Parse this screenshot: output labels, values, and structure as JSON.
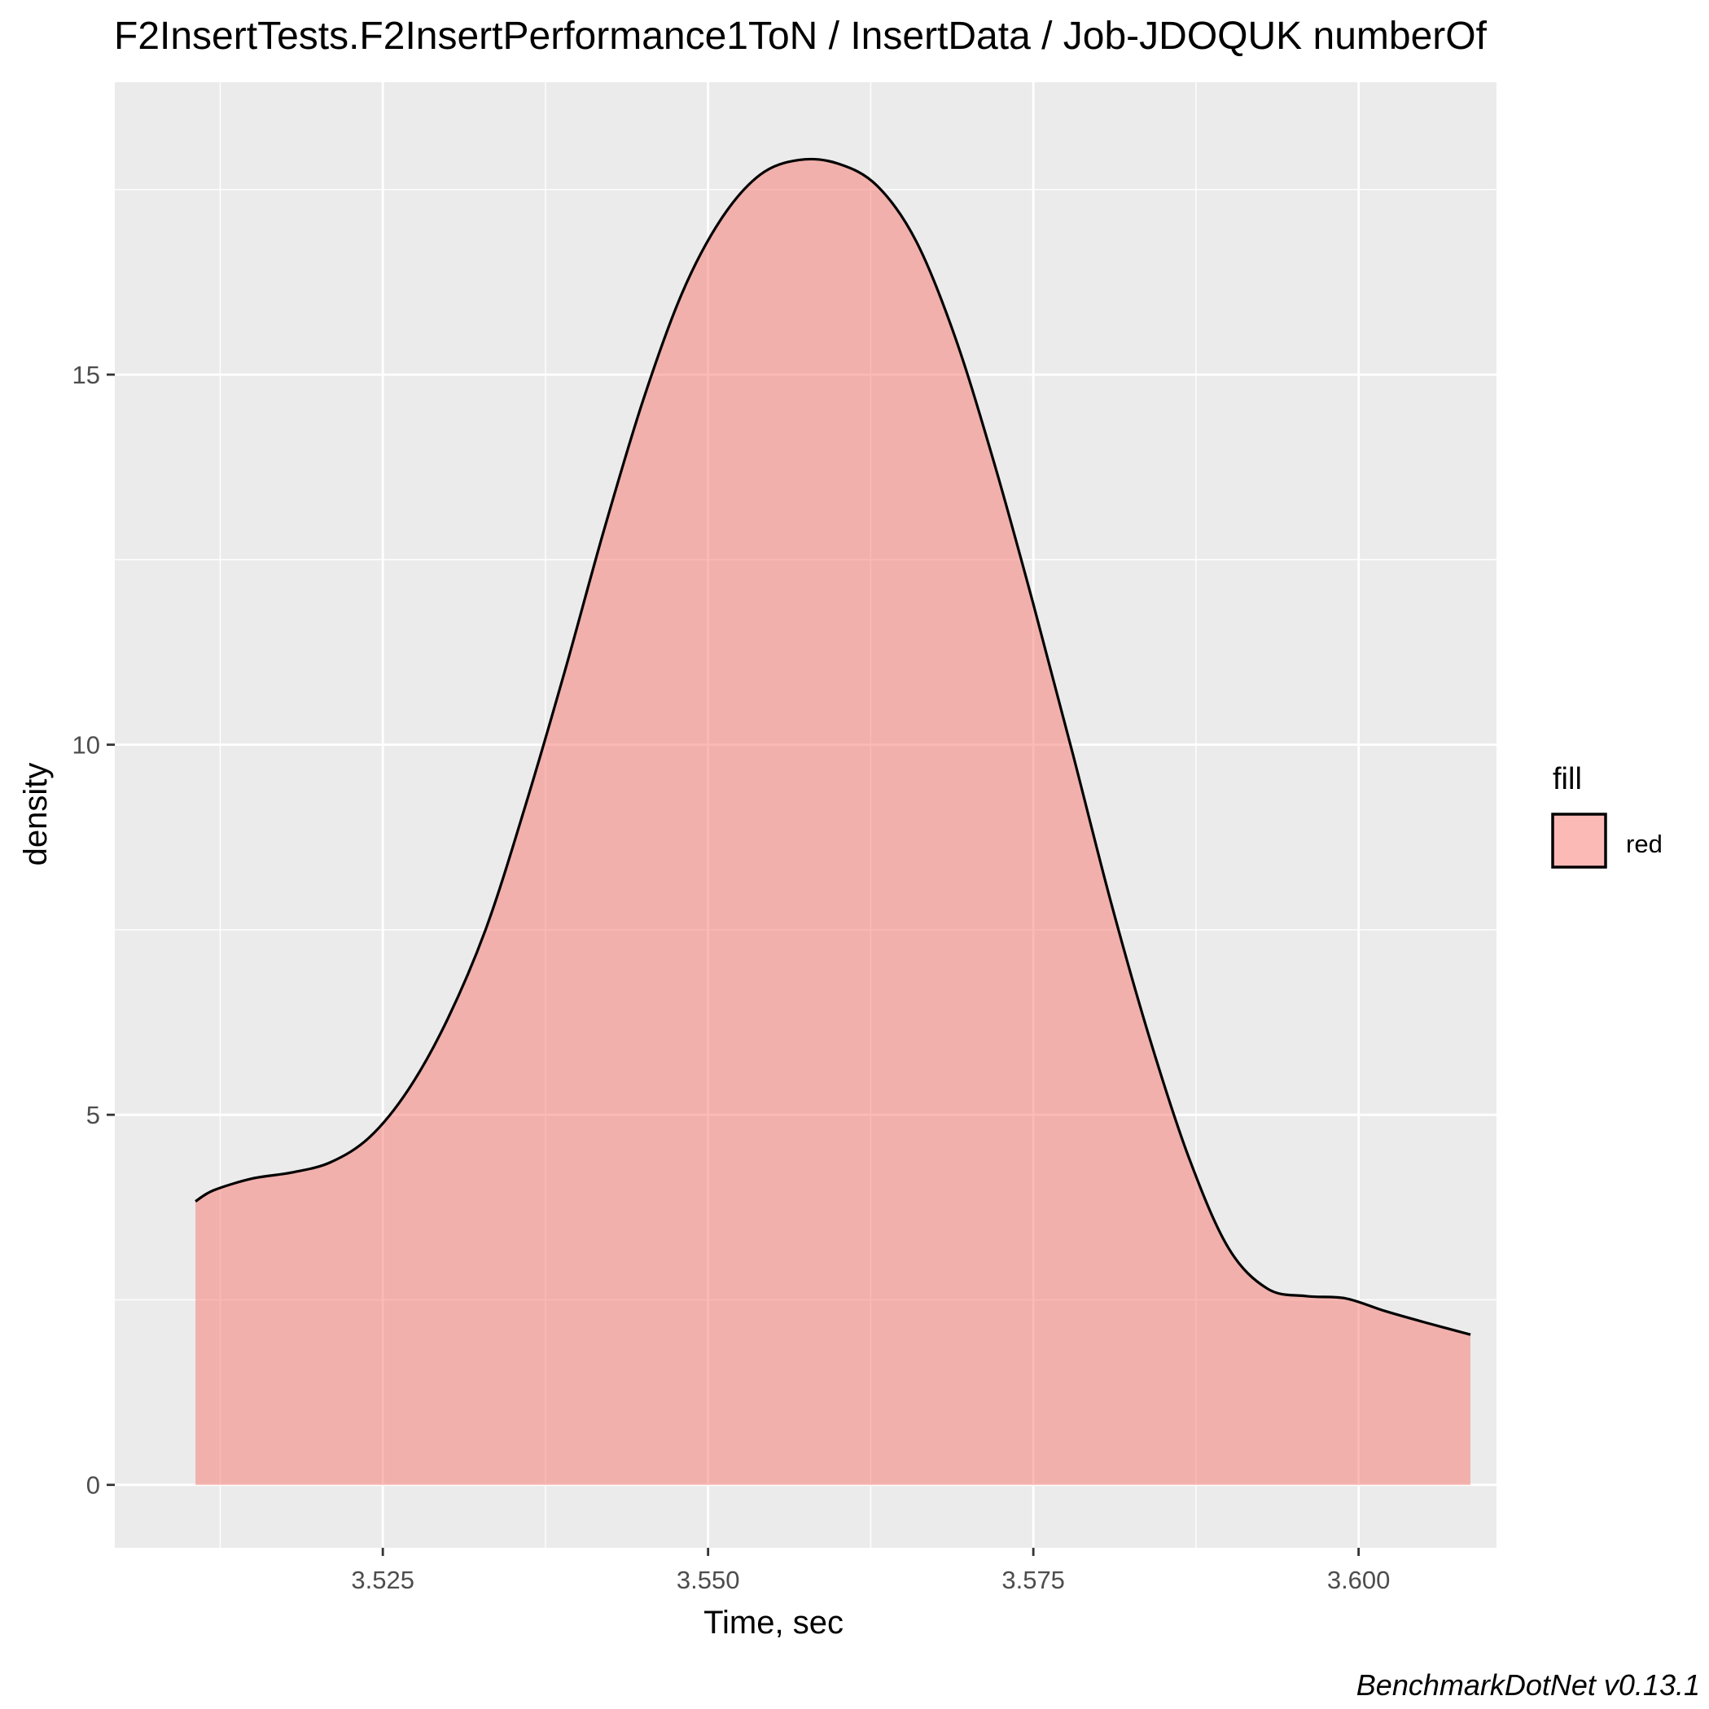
{
  "chart_data": {
    "type": "area",
    "title": "F2InsertTests.F2InsertPerformance1ToN / InsertData / Job-JDOQUK numberOf",
    "xlabel": "Time, sec",
    "ylabel": "density",
    "caption": "BenchmarkDotNet v0.13.1",
    "xlim": [
      3.5044,
      3.6106
    ],
    "ylim": [
      -0.85,
      18.95
    ],
    "x_ticks": [
      3.525,
      3.55,
      3.575,
      3.6
    ],
    "x_tick_labels": [
      "3.525",
      "3.550",
      "3.575",
      "3.600"
    ],
    "y_ticks": [
      0,
      5,
      10,
      15
    ],
    "y_tick_labels": [
      "0",
      "5",
      "10",
      "15"
    ],
    "grid": true,
    "legend": {
      "title": "fill",
      "position": "right",
      "entries": [
        {
          "label": "red",
          "color": "#F8766D"
        }
      ]
    },
    "series": [
      {
        "name": "red",
        "fill": "#F8766D",
        "fill_opacity": 0.5,
        "stroke": "#000000",
        "x": [
          3.5106,
          3.512,
          3.515,
          3.518,
          3.521,
          3.524,
          3.527,
          3.53,
          3.533,
          3.536,
          3.539,
          3.542,
          3.545,
          3.548,
          3.551,
          3.554,
          3.557,
          3.56,
          3.563,
          3.566,
          3.569,
          3.572,
          3.575,
          3.578,
          3.581,
          3.584,
          3.587,
          3.59,
          3.593,
          3.596,
          3.599,
          3.602,
          3.605,
          3.6086
        ],
        "y": [
          3.83,
          3.98,
          4.14,
          4.22,
          4.36,
          4.7,
          5.35,
          6.3,
          7.55,
          9.2,
          11.0,
          12.9,
          14.65,
          16.1,
          17.1,
          17.7,
          17.9,
          17.85,
          17.55,
          16.8,
          15.5,
          13.8,
          11.9,
          9.9,
          7.85,
          6.0,
          4.4,
          3.2,
          2.65,
          2.55,
          2.52,
          2.35,
          2.2,
          2.03
        ]
      }
    ]
  },
  "colors": {
    "panel_background": "#EBEBEB",
    "grid_major": "#FFFFFF",
    "fill": "#F8766D",
    "outline": "#000000"
  }
}
